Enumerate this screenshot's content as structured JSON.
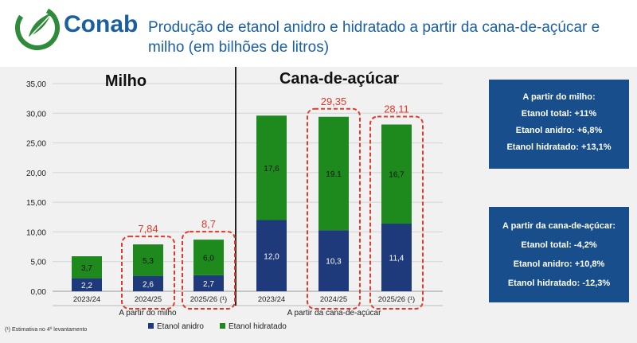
{
  "header": {
    "logo_text": "Conab",
    "title": "Produção de etanol anidro e hidratado a partir da cana-de-açúcar e milho (em bilhões de litros)"
  },
  "chart_data": {
    "type": "bar",
    "stacked": true,
    "ylim": [
      0,
      35
    ],
    "yticks": [
      "0,00",
      "5,00",
      "10,00",
      "15,00",
      "20,00",
      "25,00",
      "30,00",
      "35,00"
    ],
    "grid": true,
    "legend_position": "bottom",
    "groups": [
      {
        "label": "Milho",
        "axis_label": "A partir do milho",
        "categories": [
          "2023/24",
          "2024/25",
          "2025/26 (¹)"
        ]
      },
      {
        "label": "Cana-de-açúcar",
        "axis_label": "A partir da cana-de-açúcar",
        "categories": [
          "2023/24",
          "2024/25",
          "2025/26 (¹)"
        ]
      }
    ],
    "series": [
      {
        "name": "Etanol anidro",
        "color": "#1f3a7a",
        "values": [
          2.2,
          2.6,
          2.7,
          12.0,
          10.3,
          11.4
        ],
        "labels": [
          "2,2",
          "2,6",
          "2,7",
          "12,0",
          "10,3",
          "11,4"
        ]
      },
      {
        "name": "Etanol hidratado",
        "color": "#1e8a1e",
        "values": [
          3.7,
          5.3,
          6.0,
          17.6,
          19.1,
          16.7
        ],
        "labels": [
          "3,7",
          "5,3",
          "6,0",
          "17,6",
          "19.1",
          "16,7"
        ]
      }
    ],
    "annotations": [
      {
        "bar_index": 1,
        "text": "7,84"
      },
      {
        "bar_index": 2,
        "text": "8,7"
      },
      {
        "bar_index": 4,
        "text": "29,35"
      },
      {
        "bar_index": 5,
        "text": "28,11"
      }
    ],
    "annotation_color": "#e03a2a"
  },
  "info_boxes": [
    {
      "title": "A partir do milho:",
      "lines": [
        "Etanol total: +11%",
        "Etanol anidro: +6,8%",
        "Etanol hidratado: +13,1%"
      ]
    },
    {
      "title": "A partir da cana-de-açúcar:",
      "lines": [
        "Etanol total: -4,2%",
        "Etanol anidro: +10,8%",
        "Etanol hidratado: -12,3%"
      ]
    }
  ],
  "footnote": "(¹) Estimativa no 4º levantamento"
}
